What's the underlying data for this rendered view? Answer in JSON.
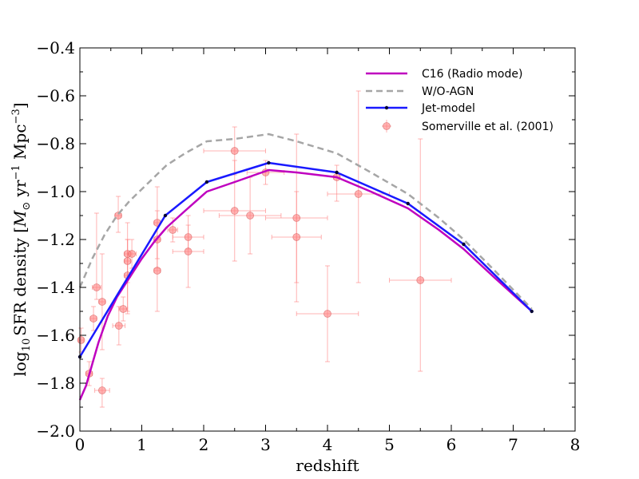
{
  "chart_data": {
    "type": "line",
    "title": "",
    "xlabel": "redshift",
    "ylabel_parts": {
      "log": "log",
      "log_sub": "10",
      "main": "SFR density [",
      "msun": "M",
      "msun_sub": "⊙",
      "yr": " yr",
      "yr_sup": "−1",
      "mpc": " Mpc",
      "mpc_sup": "−3",
      "close": "]"
    },
    "xlim": [
      0,
      8
    ],
    "ylim": [
      -2.0,
      -0.4
    ],
    "x_ticks": [
      0,
      1,
      2,
      3,
      4,
      5,
      6,
      7,
      8
    ],
    "x_tick_labels": [
      "0",
      "1",
      "2",
      "3",
      "4",
      "5",
      "6",
      "7",
      "8"
    ],
    "y_ticks": [
      -2.0,
      -1.8,
      -1.6,
      -1.4,
      -1.2,
      -1.0,
      -0.8,
      -0.6,
      -0.4
    ],
    "y_tick_labels": [
      "−2.0",
      "−1.8",
      "−1.6",
      "−1.4",
      "−1.2",
      "−1.0",
      "−0.8",
      "−0.6",
      "−0.4"
    ],
    "legend_position": "top-right",
    "series": [
      {
        "name": "C16 (Radio mode)",
        "style": "solid",
        "color": "#bf00bf",
        "x": [
          0.0,
          0.1,
          0.2,
          0.3,
          0.45,
          0.6,
          0.8,
          1.0,
          1.2,
          1.4,
          1.7,
          2.05,
          2.5,
          3.05,
          3.5,
          4.15,
          4.7,
          5.3,
          5.8,
          6.2,
          6.7,
          7.3
        ],
        "y": [
          -1.87,
          -1.81,
          -1.72,
          -1.63,
          -1.52,
          -1.44,
          -1.36,
          -1.28,
          -1.21,
          -1.15,
          -1.08,
          -1.0,
          -0.96,
          -0.91,
          -0.92,
          -0.94,
          -1.0,
          -1.07,
          -1.16,
          -1.24,
          -1.36,
          -1.5
        ]
      },
      {
        "name": "W/O-AGN",
        "style": "dashed",
        "color": "#a6a6a6",
        "x": [
          0.0,
          0.2,
          0.4,
          0.6,
          0.8,
          1.0,
          1.2,
          1.4,
          1.7,
          2.05,
          2.5,
          3.05,
          3.5,
          4.15,
          4.7,
          5.3,
          5.8,
          6.2,
          6.7,
          7.3
        ],
        "y": [
          -1.4,
          -1.28,
          -1.18,
          -1.1,
          -1.04,
          -0.99,
          -0.94,
          -0.89,
          -0.84,
          -0.79,
          -0.78,
          -0.76,
          -0.79,
          -0.84,
          -0.92,
          -1.01,
          -1.11,
          -1.2,
          -1.33,
          -1.49
        ]
      },
      {
        "name": "Jet-model",
        "style": "solid-with-dots",
        "color": "#1919ff",
        "x": [
          0.0,
          1.38,
          2.05,
          3.05,
          4.15,
          5.3,
          6.2,
          7.3
        ],
        "y": [
          -1.69,
          -1.1,
          -0.96,
          -0.88,
          -0.92,
          -1.05,
          -1.22,
          -1.5
        ]
      }
    ],
    "error_data": {
      "name": "Somerville et al. (2001)",
      "color": "#ff8080",
      "points": [
        {
          "x": 0.02,
          "y": -1.62,
          "xerr": 0.04,
          "yerr_up": 0.05,
          "yerr_down": 0.05
        },
        {
          "x": 0.15,
          "y": -1.76,
          "xerr": 0.05,
          "yerr_up": 0.05,
          "yerr_down": 0.05
        },
        {
          "x": 0.22,
          "y": -1.53,
          "xerr": 0.05,
          "yerr_up": 0.05,
          "yerr_down": 0.05
        },
        {
          "x": 0.27,
          "y": -1.4,
          "xerr": 0.07,
          "yerr_up": 0.31,
          "yerr_down": 0.05
        },
        {
          "x": 0.36,
          "y": -1.46,
          "xerr": 0.05,
          "yerr_up": 0.2,
          "yerr_down": 0.2
        },
        {
          "x": 0.36,
          "y": -1.83,
          "xerr": 0.12,
          "yerr_up": 0.05,
          "yerr_down": 0.07
        },
        {
          "x": 0.62,
          "y": -1.1,
          "xerr": 0.05,
          "yerr_up": 0.08,
          "yerr_down": 0.07
        },
        {
          "x": 0.63,
          "y": -1.56,
          "xerr": 0.1,
          "yerr_up": 0.08,
          "yerr_down": 0.08
        },
        {
          "x": 0.7,
          "y": -1.49,
          "xerr": 0.07,
          "yerr_up": 0.05,
          "yerr_down": 0.05
        },
        {
          "x": 0.77,
          "y": -1.26,
          "xerr": 0.05,
          "yerr_up": 0.13,
          "yerr_down": 0.25
        },
        {
          "x": 0.77,
          "y": -1.29,
          "xerr": 0.05,
          "yerr_up": 0.09,
          "yerr_down": 0.09
        },
        {
          "x": 0.77,
          "y": -1.35,
          "xerr": 0.05,
          "yerr_up": 0.15,
          "yerr_down": 0.15
        },
        {
          "x": 0.84,
          "y": -1.26,
          "xerr": 0.07,
          "yerr_up": 0.06,
          "yerr_down": 0.06
        },
        {
          "x": 1.25,
          "y": -1.13,
          "xerr": 0.05,
          "yerr_up": 0.15,
          "yerr_down": 0.15
        },
        {
          "x": 1.25,
          "y": -1.2,
          "xerr": 0.05,
          "yerr_up": 0.12,
          "yerr_down": 0.12
        },
        {
          "x": 1.25,
          "y": -1.33,
          "xerr": 0.05,
          "yerr_up": 0.13,
          "yerr_down": 0.17
        },
        {
          "x": 1.5,
          "y": -1.16,
          "xerr": 0.08,
          "yerr_up": 0.05,
          "yerr_down": 0.05
        },
        {
          "x": 1.75,
          "y": -1.19,
          "xerr": 0.25,
          "yerr_up": 0.05,
          "yerr_down": 0.05
        },
        {
          "x": 1.75,
          "y": -1.25,
          "xerr": 0.25,
          "yerr_up": 0.15,
          "yerr_down": 0.15
        },
        {
          "x": 2.5,
          "y": -0.83,
          "xerr": 0.5,
          "yerr_up": 0.1,
          "yerr_down": 0.1
        },
        {
          "x": 2.5,
          "y": -1.08,
          "xerr": 0.5,
          "yerr_up": 0.21,
          "yerr_down": 0.21
        },
        {
          "x": 2.75,
          "y": -1.1,
          "xerr": 0.5,
          "yerr_up": 0.16,
          "yerr_down": 0.16
        },
        {
          "x": 3.0,
          "y": -0.92,
          "xerr": 0.3,
          "yerr_up": 0.05,
          "yerr_down": 0.05
        },
        {
          "x": 3.5,
          "y": -1.11,
          "xerr": 0.5,
          "yerr_up": 0.35,
          "yerr_down": 0.35
        },
        {
          "x": 3.5,
          "y": -1.19,
          "xerr": 0.4,
          "yerr_up": 0.19,
          "yerr_down": 0.19
        },
        {
          "x": 4.0,
          "y": -1.51,
          "xerr": 0.5,
          "yerr_up": 0.2,
          "yerr_down": 0.2
        },
        {
          "x": 4.15,
          "y": -0.94,
          "xerr": 0.05,
          "yerr_up": 0.05,
          "yerr_down": 0.1
        },
        {
          "x": 4.5,
          "y": -1.01,
          "xerr": 0.5,
          "yerr_up": 0.43,
          "yerr_down": 0.37
        },
        {
          "x": 5.5,
          "y": -1.37,
          "xerr": 0.5,
          "yerr_up": 0.59,
          "yerr_down": 0.38
        }
      ]
    }
  }
}
